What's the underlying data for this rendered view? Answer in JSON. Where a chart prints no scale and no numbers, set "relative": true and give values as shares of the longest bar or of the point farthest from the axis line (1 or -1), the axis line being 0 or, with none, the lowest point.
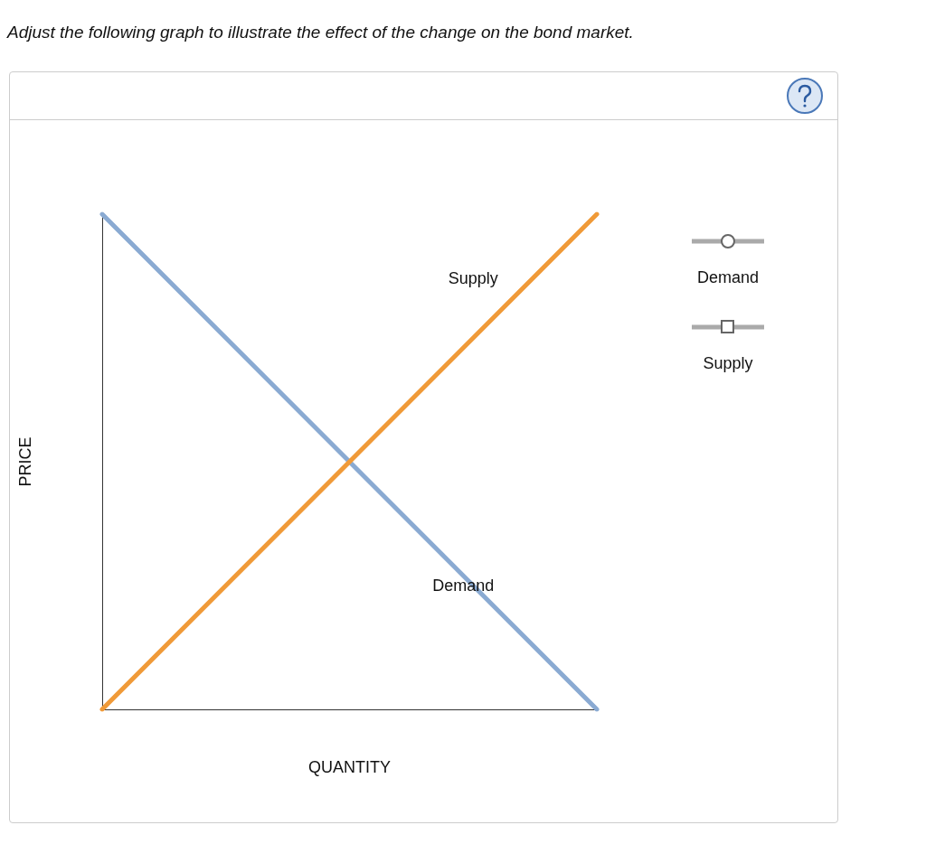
{
  "chart_data": {
    "type": "line",
    "title": "Adjust the following graph to illustrate the effect of the change on the bond market.",
    "xlabel": "QUANTITY",
    "ylabel": "PRICE",
    "categories": [
      null,
      null
    ],
    "relative": true,
    "marker": "none",
    "legend": "right",
    "grid": false,
    "series": [
      {
        "name": "Demand",
        "color": "#8aaad2",
        "values": [
          1,
          0
        ]
      },
      {
        "name": "Supply",
        "color": "#f09a38",
        "values": [
          0,
          1
        ]
      }
    ]
  }
}
